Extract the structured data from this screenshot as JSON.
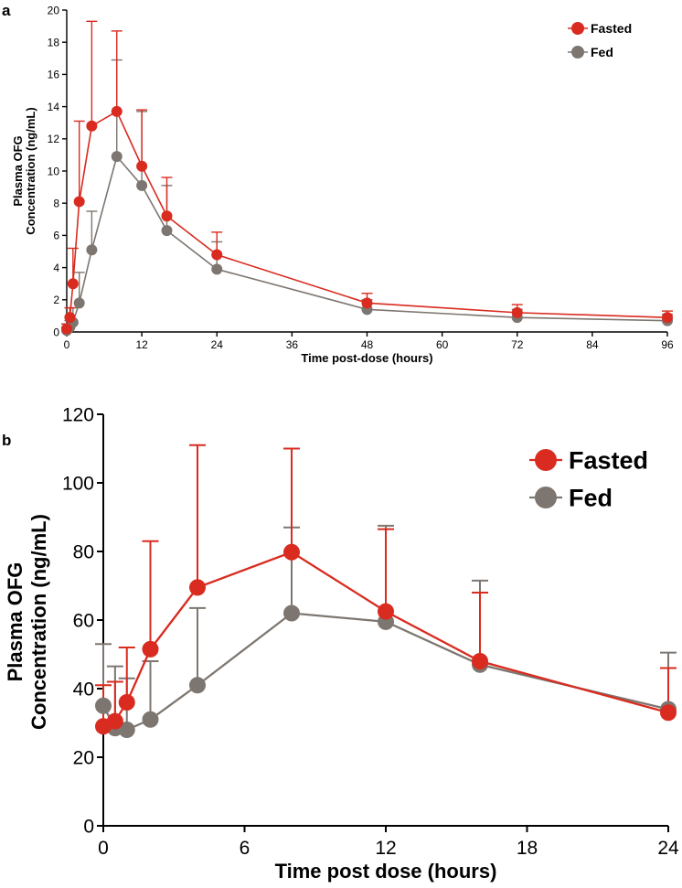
{
  "colors": {
    "fasted": "#d92b1f",
    "fed": "#7d7670",
    "axis": "#000000"
  },
  "chart_data": [
    {
      "type": "line",
      "panel_label": "a",
      "title": "",
      "xlabel": "Time post-dose (hours)",
      "ylabel_lines": [
        "Plasma OFG",
        "Concentration (ng/mL)"
      ],
      "xlim": [
        0,
        96
      ],
      "ylim": [
        0,
        20
      ],
      "xticks": [
        0,
        12,
        24,
        36,
        48,
        60,
        72,
        84,
        96
      ],
      "yticks": [
        0,
        2,
        4,
        6,
        8,
        10,
        12,
        14,
        16,
        18,
        20
      ],
      "grid": false,
      "legend_position": "top-right",
      "series": [
        {
          "name": "Fasted",
          "color_key": "fasted",
          "x": [
            0,
            0.5,
            1,
            2,
            4,
            8,
            12,
            16,
            24,
            48,
            72,
            96
          ],
          "y": [
            0.2,
            0.9,
            3.0,
            8.1,
            12.8,
            13.7,
            10.3,
            7.2,
            4.8,
            1.8,
            1.2,
            0.9
          ],
          "error_upper": [
            0.5,
            1.5,
            5.2,
            13.1,
            19.3,
            18.7,
            13.8,
            9.6,
            6.2,
            2.4,
            1.7,
            1.3
          ]
        },
        {
          "name": "Fed",
          "color_key": "fed",
          "x": [
            0,
            0.5,
            1,
            2,
            4,
            8,
            12,
            16,
            24,
            48,
            72,
            96
          ],
          "y": [
            0.1,
            0.3,
            0.6,
            1.8,
            5.1,
            10.9,
            9.1,
            6.3,
            3.9,
            1.4,
            0.9,
            0.7
          ],
          "error_upper": [
            0.3,
            0.7,
            1.5,
            3.7,
            7.5,
            16.9,
            13.7,
            9.1,
            5.6,
            2.0,
            1.4,
            1.1
          ]
        }
      ]
    },
    {
      "type": "line",
      "panel_label": "b",
      "title": "",
      "xlabel": "Time post dose (hours)",
      "ylabel_lines": [
        "Plasma OFG",
        "Concentration (ng/mL)"
      ],
      "xlim": [
        0,
        24
      ],
      "ylim": [
        0,
        120
      ],
      "xticks": [
        0,
        6,
        12,
        18,
        24
      ],
      "yticks": [
        0,
        20,
        40,
        60,
        80,
        100,
        120
      ],
      "grid": false,
      "legend_position": "top-right",
      "series": [
        {
          "name": "Fasted",
          "color_key": "fasted",
          "x": [
            0,
            0.5,
            1,
            2,
            4,
            8,
            12,
            16,
            24
          ],
          "y": [
            29,
            30.5,
            36,
            51.5,
            69.5,
            79.8,
            62.5,
            48,
            33
          ],
          "error_upper": [
            41,
            42,
            52,
            83,
            111,
            110,
            86.5,
            68,
            46
          ]
        },
        {
          "name": "Fed",
          "color_key": "fed",
          "x": [
            0,
            0.5,
            1,
            2,
            4,
            8,
            12,
            16,
            24
          ],
          "y": [
            35,
            28.5,
            28,
            31,
            41,
            62,
            59.5,
            47,
            34
          ],
          "error_upper": [
            53,
            46.5,
            43,
            48,
            63.5,
            87,
            87.5,
            71.5,
            50.5
          ]
        }
      ]
    }
  ]
}
